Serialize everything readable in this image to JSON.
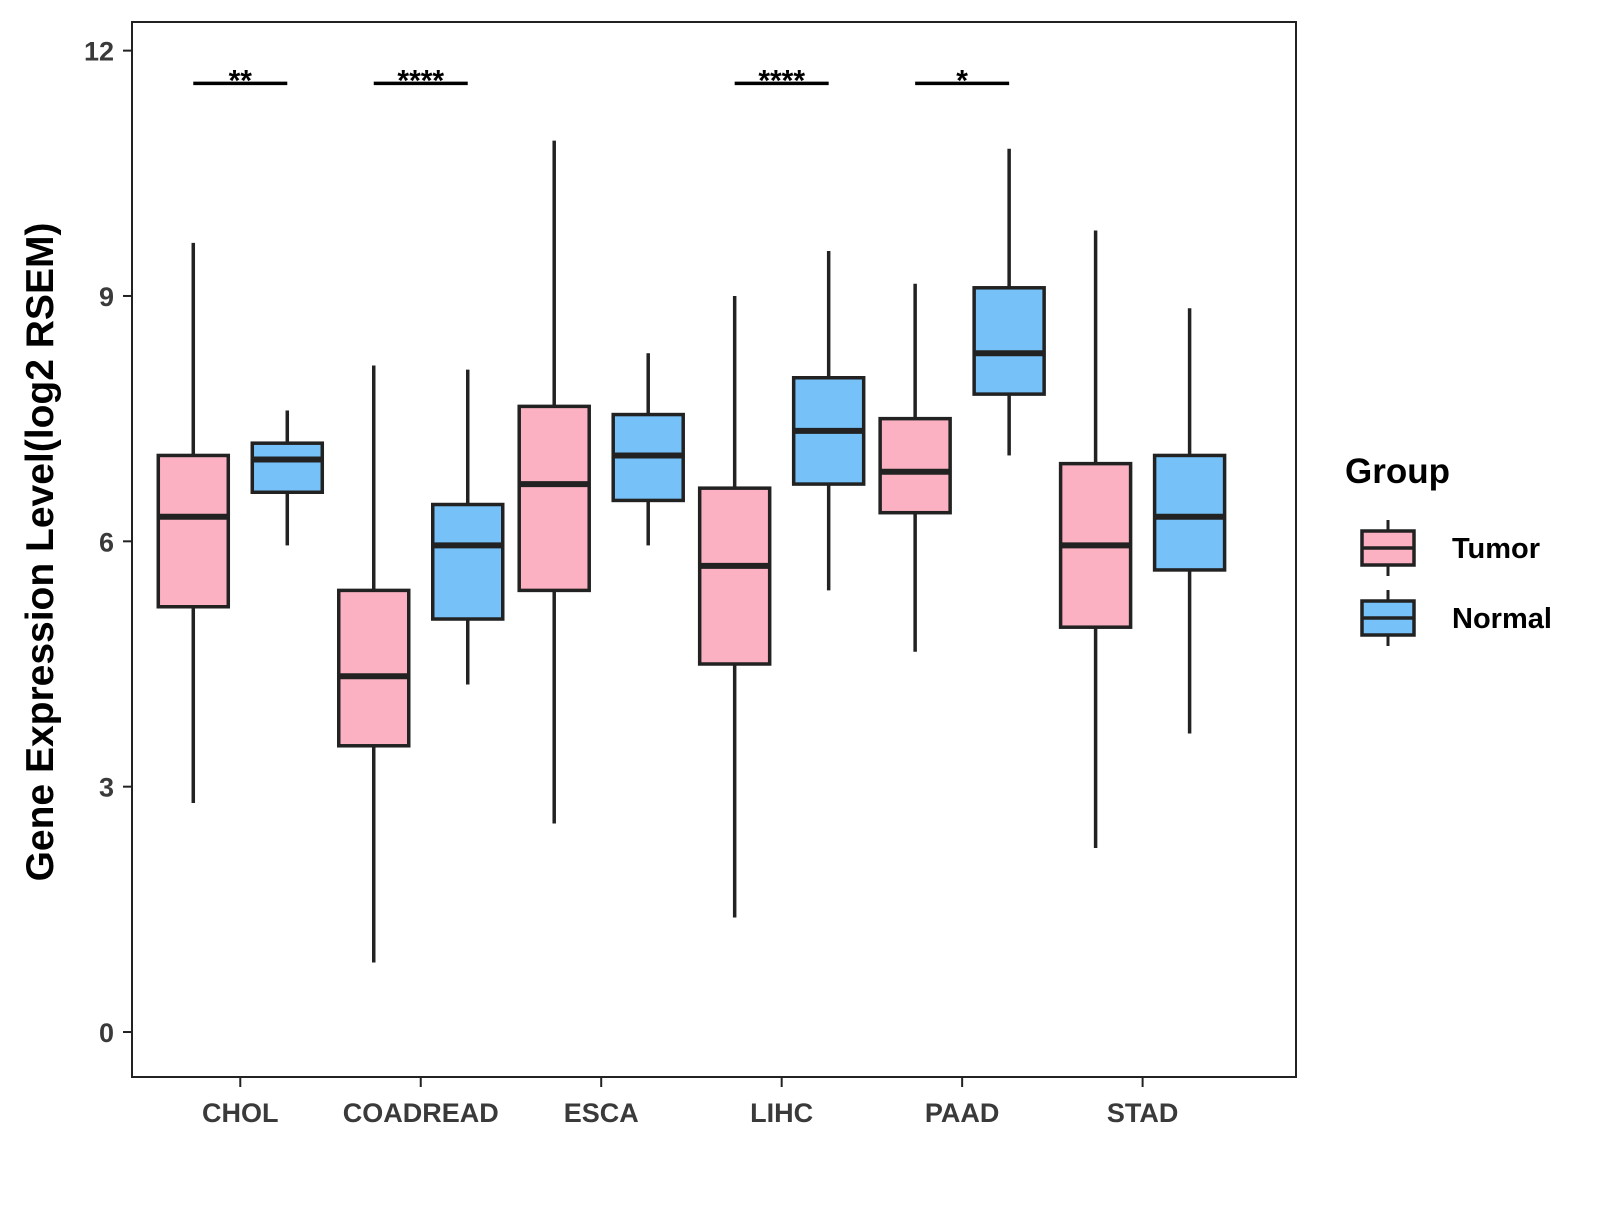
{
  "chart_data": {
    "type": "boxplot",
    "title": "",
    "xlabel": "",
    "ylabel": "Gene Expression Level(log2 RSEM)",
    "ylim": [
      -0.55,
      12.35
    ],
    "yticks": [
      0,
      3,
      6,
      9,
      12
    ],
    "grid": false,
    "legend": {
      "title": "Group",
      "position": "right",
      "entries": [
        {
          "name": "Tumor",
          "color": "#FBB1C2"
        },
        {
          "name": "Normal",
          "color": "#76C2F8"
        }
      ]
    },
    "categories": [
      "CHOL",
      "COADREAD",
      "ESCA",
      "LIHC",
      "PAAD",
      "STAD"
    ],
    "series": [
      {
        "name": "Tumor",
        "color": "#FBB1C2",
        "boxes": [
          {
            "min": 2.8,
            "q1": 5.2,
            "median": 6.3,
            "q3": 7.05,
            "max": 9.65
          },
          {
            "min": 0.85,
            "q1": 3.5,
            "median": 4.35,
            "q3": 5.4,
            "max": 8.15
          },
          {
            "min": 2.55,
            "q1": 5.4,
            "median": 6.7,
            "q3": 7.65,
            "max": 10.9
          },
          {
            "min": 1.4,
            "q1": 4.5,
            "median": 5.7,
            "q3": 6.65,
            "max": 9.0
          },
          {
            "min": 4.65,
            "q1": 6.35,
            "median": 6.85,
            "q3": 7.5,
            "max": 9.15
          },
          {
            "min": 2.25,
            "q1": 4.95,
            "median": 5.95,
            "q3": 6.95,
            "max": 9.8
          }
        ]
      },
      {
        "name": "Normal",
        "color": "#76C2F8",
        "boxes": [
          {
            "min": 5.95,
            "q1": 6.6,
            "median": 7.0,
            "q3": 7.2,
            "max": 7.6
          },
          {
            "min": 4.25,
            "q1": 5.05,
            "median": 5.95,
            "q3": 6.45,
            "max": 8.1
          },
          {
            "min": 5.95,
            "q1": 6.5,
            "median": 7.05,
            "q3": 7.55,
            "max": 8.3
          },
          {
            "min": 5.4,
            "q1": 6.7,
            "median": 7.35,
            "q3": 8.0,
            "max": 9.55
          },
          {
            "min": 7.05,
            "q1": 7.8,
            "median": 8.3,
            "q3": 9.1,
            "max": 10.8
          },
          {
            "min": 3.65,
            "q1": 5.65,
            "median": 6.3,
            "q3": 7.05,
            "max": 8.85
          }
        ]
      }
    ],
    "significance": [
      {
        "category": "CHOL",
        "label": "**"
      },
      {
        "category": "COADREAD",
        "label": "****"
      },
      {
        "category": "ESCA",
        "label": ""
      },
      {
        "category": "LIHC",
        "label": "****"
      },
      {
        "category": "PAAD",
        "label": "*"
      },
      {
        "category": "STAD",
        "label": ""
      }
    ],
    "significance_y": 11.6
  }
}
